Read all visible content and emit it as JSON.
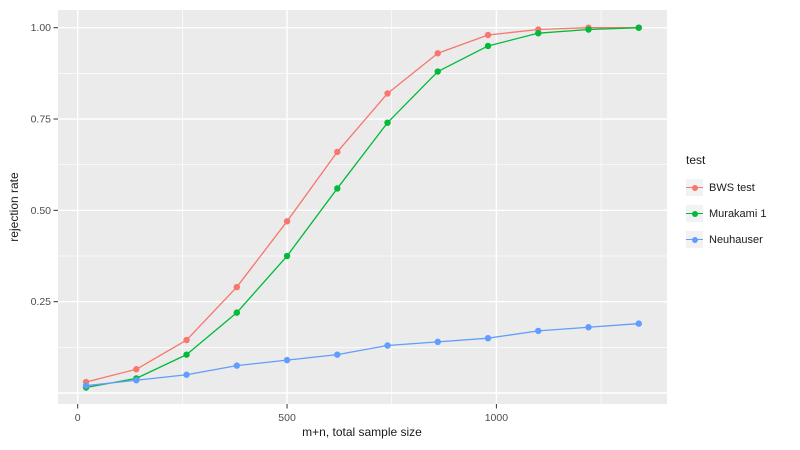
{
  "chart_data": {
    "type": "line",
    "title": "",
    "xlabel": "m+n, total sample size",
    "ylabel": "rejection rate",
    "legend_title": "test",
    "legend_position": "right",
    "grid": "on",
    "panel_bg": "#EBEBEB",
    "grid_color": "#FFFFFF",
    "legend_key_bg": "#F2F2F2",
    "tick_label_color": "#4D4D4D",
    "tick_mark_color": "#333333",
    "xlim": [
      -47,
      1408
    ],
    "ylim": [
      -0.03,
      1.048
    ],
    "x_ticks": {
      "values": [
        0,
        500,
        1000
      ],
      "labels": [
        "0",
        "500",
        "1000"
      ]
    },
    "y_ticks": {
      "values": [
        0.25,
        0.5,
        0.75,
        1.0
      ],
      "labels": [
        "0.25",
        "0.50",
        "0.75",
        "1.00"
      ]
    },
    "x_minor": [
      250,
      750,
      1250
    ],
    "y_minor": [
      0.125,
      0.375,
      0.625,
      0.875
    ],
    "x": [
      20,
      140,
      260,
      380,
      500,
      620,
      740,
      860,
      980,
      1100,
      1220,
      1340
    ],
    "series": [
      {
        "name": "BWS test",
        "color": "#F8766D",
        "values": [
          0.03,
          0.065,
          0.145,
          0.29,
          0.47,
          0.66,
          0.82,
          0.93,
          0.98,
          0.995,
          1.0,
          1.0
        ]
      },
      {
        "name": "Murakami 1",
        "color": "#00BA38",
        "values": [
          0.015,
          0.04,
          0.105,
          0.22,
          0.375,
          0.56,
          0.74,
          0.88,
          0.95,
          0.985,
          0.995,
          1.0
        ]
      },
      {
        "name": "Neuhauser",
        "color": "#619CFF",
        "values": [
          0.02,
          0.035,
          0.05,
          0.075,
          0.09,
          0.105,
          0.13,
          0.14,
          0.15,
          0.17,
          0.18,
          0.19
        ]
      }
    ]
  }
}
